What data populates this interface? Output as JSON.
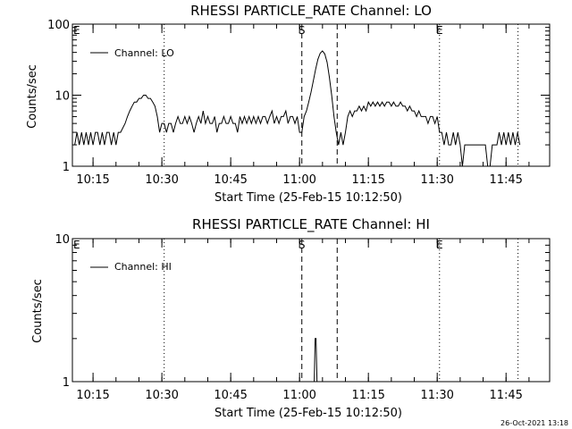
{
  "colors": {
    "background": "#ffffff",
    "foreground": "#000000"
  },
  "footer": {
    "timestamp": "26-Oct-2021 13:18"
  },
  "chart_data": [
    {
      "type": "line",
      "title": "RHESSI PARTICLE_RATE Channel: LO",
      "xlabel": "Start Time (25-Feb-15 10:12:50)",
      "ylabel": "Counts/sec",
      "yscale": "log",
      "ylim": [
        1,
        100
      ],
      "xlim_minutes": [
        10.5,
        114.5
      ],
      "x_ticks": [
        {
          "t": 15,
          "label": "10:15"
        },
        {
          "t": 30,
          "label": "10:30"
        },
        {
          "t": 45,
          "label": "10:45"
        },
        {
          "t": 60,
          "label": "11:00"
        },
        {
          "t": 75,
          "label": "11:15"
        },
        {
          "t": 90,
          "label": "11:30"
        },
        {
          "t": 105,
          "label": "11:45"
        }
      ],
      "y_ticks": [
        {
          "v": 1,
          "label": "1"
        },
        {
          "v": 10,
          "label": "10"
        },
        {
          "v": 100,
          "label": "100"
        }
      ],
      "legend": {
        "position": "top-left",
        "entries": [
          "Channel: LO"
        ]
      },
      "markers": [
        {
          "label": "E",
          "t": 10.7,
          "style": "none"
        },
        {
          "label": "",
          "t": 30.5,
          "style": "dotted"
        },
        {
          "label": "S",
          "t": 60.5,
          "style": "dashed"
        },
        {
          "label": "",
          "t": 68.2,
          "style": "dashed"
        },
        {
          "label": "E",
          "t": 90.5,
          "style": "dotted"
        },
        {
          "label": "",
          "t": 107.6,
          "style": "dotted"
        }
      ],
      "series": [
        {
          "name": "Channel: LO",
          "points": [
            [
              11.0,
              2
            ],
            [
              11.5,
              3
            ],
            [
              12.0,
              2
            ],
            [
              12.5,
              3
            ],
            [
              13.0,
              2
            ],
            [
              13.5,
              3
            ],
            [
              14.0,
              2
            ],
            [
              14.5,
              3
            ],
            [
              15.0,
              2
            ],
            [
              15.5,
              3
            ],
            [
              16.0,
              3
            ],
            [
              16.5,
              2
            ],
            [
              17.0,
              3
            ],
            [
              17.5,
              2
            ],
            [
              18.0,
              3
            ],
            [
              18.5,
              3
            ],
            [
              19.0,
              2
            ],
            [
              19.5,
              3
            ],
            [
              20.0,
              2
            ],
            [
              20.5,
              3
            ],
            [
              21.0,
              3
            ],
            [
              22.0,
              4
            ],
            [
              22.5,
              5
            ],
            [
              23.0,
              6
            ],
            [
              23.5,
              7
            ],
            [
              24.0,
              8
            ],
            [
              24.5,
              8
            ],
            [
              25.0,
              9
            ],
            [
              25.5,
              9
            ],
            [
              26.0,
              10
            ],
            [
              26.5,
              10
            ],
            [
              27.0,
              9
            ],
            [
              27.5,
              9
            ],
            [
              28.0,
              8
            ],
            [
              28.5,
              7
            ],
            [
              29.0,
              5
            ],
            [
              29.5,
              3
            ],
            [
              30.0,
              4
            ],
            [
              30.5,
              4
            ],
            [
              31.0,
              3
            ],
            [
              31.5,
              4
            ],
            [
              32.0,
              4
            ],
            [
              32.5,
              3
            ],
            [
              33.0,
              4
            ],
            [
              33.5,
              5
            ],
            [
              34.0,
              4
            ],
            [
              34.5,
              4
            ],
            [
              35.0,
              5
            ],
            [
              35.5,
              4
            ],
            [
              36.0,
              5
            ],
            [
              36.5,
              4
            ],
            [
              37.0,
              3
            ],
            [
              37.5,
              4
            ],
            [
              38.0,
              5
            ],
            [
              38.5,
              4
            ],
            [
              39.0,
              6
            ],
            [
              39.5,
              4
            ],
            [
              40.0,
              5
            ],
            [
              40.5,
              4
            ],
            [
              41.0,
              4
            ],
            [
              41.5,
              5
            ],
            [
              42.0,
              3
            ],
            [
              42.5,
              4
            ],
            [
              43.0,
              4
            ],
            [
              43.5,
              5
            ],
            [
              44.0,
              4
            ],
            [
              44.5,
              4
            ],
            [
              45.0,
              5
            ],
            [
              45.5,
              4
            ],
            [
              46.0,
              4
            ],
            [
              46.5,
              3
            ],
            [
              47.0,
              5
            ],
            [
              47.5,
              4
            ],
            [
              48.0,
              5
            ],
            [
              48.5,
              4
            ],
            [
              49.0,
              5
            ],
            [
              49.5,
              4
            ],
            [
              50.0,
              5
            ],
            [
              50.5,
              4
            ],
            [
              51.0,
              5
            ],
            [
              51.5,
              4
            ],
            [
              52.0,
              5
            ],
            [
              52.5,
              5
            ],
            [
              53.0,
              4
            ],
            [
              53.5,
              5
            ],
            [
              54.0,
              6
            ],
            [
              54.5,
              4
            ],
            [
              55.0,
              5
            ],
            [
              55.5,
              4
            ],
            [
              56.0,
              5
            ],
            [
              56.5,
              5
            ],
            [
              57.0,
              6
            ],
            [
              57.5,
              4
            ],
            [
              58.0,
              5
            ],
            [
              58.5,
              5
            ],
            [
              59.0,
              4
            ],
            [
              59.5,
              5
            ],
            [
              60.0,
              3
            ],
            [
              60.5,
              3
            ],
            [
              61.0,
              5
            ],
            [
              61.5,
              6
            ],
            [
              62.0,
              8
            ],
            [
              62.5,
              11
            ],
            [
              63.0,
              16
            ],
            [
              63.5,
              23
            ],
            [
              64.0,
              32
            ],
            [
              64.5,
              39
            ],
            [
              65.0,
              42
            ],
            [
              65.5,
              38
            ],
            [
              66.0,
              29
            ],
            [
              66.5,
              18
            ],
            [
              67.0,
              10
            ],
            [
              67.5,
              5
            ],
            [
              68.0,
              3
            ],
            [
              68.5,
              2
            ],
            [
              69.0,
              3
            ],
            [
              69.5,
              2
            ],
            [
              70.0,
              3
            ],
            [
              70.5,
              5
            ],
            [
              71.0,
              6
            ],
            [
              71.5,
              5
            ],
            [
              72.0,
              6
            ],
            [
              72.5,
              6
            ],
            [
              73.0,
              7
            ],
            [
              73.5,
              6
            ],
            [
              74.0,
              7
            ],
            [
              74.5,
              6
            ],
            [
              75.0,
              8
            ],
            [
              75.5,
              7
            ],
            [
              76.0,
              8
            ],
            [
              76.5,
              7
            ],
            [
              77.0,
              8
            ],
            [
              77.5,
              7
            ],
            [
              78.0,
              8
            ],
            [
              78.5,
              7
            ],
            [
              79.0,
              8
            ],
            [
              79.5,
              8
            ],
            [
              80.0,
              7
            ],
            [
              80.5,
              8
            ],
            [
              81.0,
              7
            ],
            [
              81.5,
              7
            ],
            [
              82.0,
              8
            ],
            [
              82.5,
              7
            ],
            [
              83.0,
              7
            ],
            [
              83.5,
              6
            ],
            [
              84.0,
              7
            ],
            [
              84.5,
              6
            ],
            [
              85.0,
              6
            ],
            [
              85.5,
              5
            ],
            [
              86.0,
              6
            ],
            [
              86.5,
              5
            ],
            [
              87.0,
              5
            ],
            [
              87.5,
              5
            ],
            [
              88.0,
              4
            ],
            [
              88.5,
              5
            ],
            [
              89.0,
              5
            ],
            [
              89.5,
              4
            ],
            [
              90.0,
              5
            ],
            [
              90.5,
              3
            ],
            [
              91.0,
              3
            ],
            [
              91.5,
              2
            ],
            [
              92.0,
              3
            ],
            [
              92.5,
              2
            ],
            [
              93.0,
              2
            ],
            [
              93.5,
              3
            ],
            [
              94.0,
              2
            ],
            [
              94.5,
              3
            ],
            [
              95.0,
              2
            ],
            [
              95.5,
              1
            ],
            [
              96.0,
              2
            ],
            [
              96.5,
              2
            ],
            [
              97.0,
              2
            ],
            [
              98.0,
              2
            ],
            [
              99.0,
              2
            ],
            [
              100.0,
              2
            ],
            [
              100.5,
              2
            ],
            [
              101.0,
              1
            ],
            [
              101.5,
              1
            ],
            [
              102.0,
              2
            ],
            [
              103.0,
              2
            ],
            [
              103.5,
              3
            ],
            [
              104.0,
              2
            ],
            [
              104.5,
              3
            ],
            [
              105.0,
              2
            ],
            [
              105.5,
              3
            ],
            [
              106.0,
              2
            ],
            [
              106.5,
              3
            ],
            [
              107.0,
              2
            ],
            [
              107.5,
              3
            ],
            [
              108.0,
              2
            ]
          ]
        }
      ]
    },
    {
      "type": "line",
      "title": "RHESSI PARTICLE_RATE Channel: HI",
      "xlabel": "Start Time (25-Feb-15 10:12:50)",
      "ylabel": "Counts/sec",
      "yscale": "log",
      "ylim": [
        1,
        10
      ],
      "xlim_minutes": [
        10.5,
        114.5
      ],
      "x_ticks": [
        {
          "t": 15,
          "label": "10:15"
        },
        {
          "t": 30,
          "label": "10:30"
        },
        {
          "t": 45,
          "label": "10:45"
        },
        {
          "t": 60,
          "label": "11:00"
        },
        {
          "t": 75,
          "label": "11:15"
        },
        {
          "t": 90,
          "label": "11:30"
        },
        {
          "t": 105,
          "label": "11:45"
        }
      ],
      "y_ticks": [
        {
          "v": 1,
          "label": "1"
        },
        {
          "v": 10,
          "label": "10"
        }
      ],
      "legend": {
        "position": "top-left",
        "entries": [
          "Channel: HI"
        ]
      },
      "markers": [
        {
          "label": "E",
          "t": 10.7,
          "style": "none"
        },
        {
          "label": "",
          "t": 30.5,
          "style": "dotted"
        },
        {
          "label": "S",
          "t": 60.5,
          "style": "dashed"
        },
        {
          "label": "",
          "t": 68.2,
          "style": "dashed"
        },
        {
          "label": "E",
          "t": 90.5,
          "style": "dotted"
        },
        {
          "label": "",
          "t": 107.6,
          "style": "dotted"
        }
      ],
      "series": [
        {
          "name": "Channel: HI",
          "points": [
            [
              63.2,
              1
            ],
            [
              63.4,
              2
            ],
            [
              63.6,
              2
            ],
            [
              63.8,
              1
            ]
          ]
        }
      ]
    }
  ]
}
